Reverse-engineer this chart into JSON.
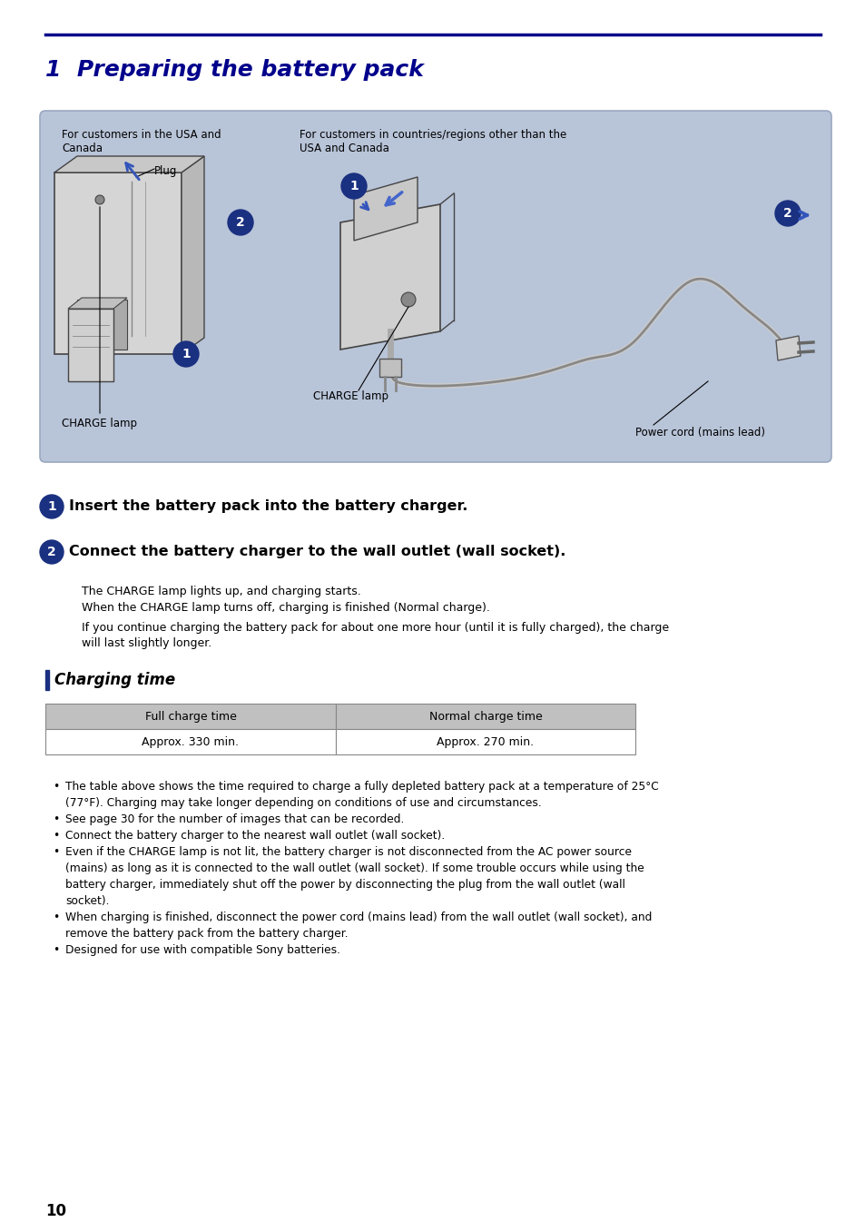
{
  "page_bg": "#ffffff",
  "title_line_color": "#00008B",
  "title_text": "1  Preparing the battery pack",
  "title_color": "#00008B",
  "title_fontsize": 18,
  "diagram_bg": "#b8c4d8",
  "diagram_border": "#9aa8c0",
  "left_label": "For customers in the USA and\nCanada",
  "right_label": "For customers in countries/regions other than the\nUSA and Canada",
  "plug_label": "Plug",
  "charge_lamp_left": "CHARGE lamp",
  "charge_lamp_right": "CHARGE lamp",
  "power_cord_label": "Power cord (mains lead)",
  "step1_bold": "Insert the battery pack into the battery charger.",
  "step2_bold": "Connect the battery charger to the wall outlet (wall socket).",
  "body1": "The CHARGE lamp lights up, and charging starts.",
  "body2": "When the CHARGE lamp turns off, charging is finished (Normal charge).",
  "body3": "If you continue charging the battery pack for about one more hour (until it is fully charged), the charge",
  "body3b": "will last slightly longer.",
  "section_title": "Charging time",
  "table_header1": "Full charge time",
  "table_header2": "Normal charge time",
  "table_val1": "Approx. 330 min.",
  "table_val2": "Approx. 270 min.",
  "table_header_bg": "#c0c0c0",
  "table_val_bg": "#ffffff",
  "bullet1a": "The table above shows the time required to charge a fully depleted battery pack at a temperature of 25°C",
  "bullet1b": "(77°F). Charging may take longer depending on conditions of use and circumstances.",
  "bullet2": "See page 30 for the number of images that can be recorded.",
  "bullet3": "Connect the battery charger to the nearest wall outlet (wall socket).",
  "bullet4a": "Even if the CHARGE lamp is not lit, the battery charger is not disconnected from the AC power source",
  "bullet4b": "(mains) as long as it is connected to the wall outlet (wall socket). If some trouble occurs while using the",
  "bullet4c": "battery charger, immediately shut off the power by disconnecting the plug from the wall outlet (wall",
  "bullet4d": "socket).",
  "bullet5a": "When charging is finished, disconnect the power cord (mains lead) from the wall outlet (wall socket), and",
  "bullet5b": "remove the battery pack from the battery charger.",
  "bullet6": "Designed for use with compatible Sony batteries.",
  "page_num": "10",
  "circle_color": "#1a3080",
  "section_bar_color": "#1a3080",
  "device_color": "#d8d8d8",
  "device_edge": "#555555",
  "cord_color": "#c0c0c0"
}
